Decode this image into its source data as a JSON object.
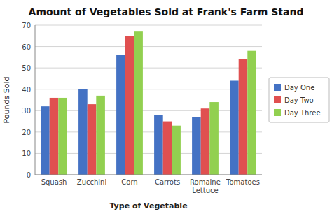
{
  "chart_data": {
    "type": "bar",
    "title": "Amount of Vegetables Sold at Frank's Farm Stand",
    "x_label": "Type of Vegetable",
    "y_label": "Pounds Sold",
    "categories": [
      "Squash",
      "Zucchini",
      "Corn",
      "Carrots",
      "Romaine\nLettuce",
      "Tomatoes"
    ],
    "series": [
      {
        "name": "Day One",
        "color": "#4472C4",
        "values": [
          32,
          40,
          56,
          28,
          27,
          44
        ]
      },
      {
        "name": "Day Two",
        "color": "#E05050",
        "values": [
          36,
          33,
          65,
          25,
          31,
          54
        ]
      },
      {
        "name": "Day Three",
        "color": "#92D050",
        "values": [
          36,
          37,
          67,
          23,
          34,
          58
        ]
      }
    ],
    "ylim": [
      0,
      70
    ],
    "yticks": [
      0,
      10,
      20,
      30,
      40,
      50,
      60,
      70
    ],
    "grid": true,
    "legend": "right"
  }
}
